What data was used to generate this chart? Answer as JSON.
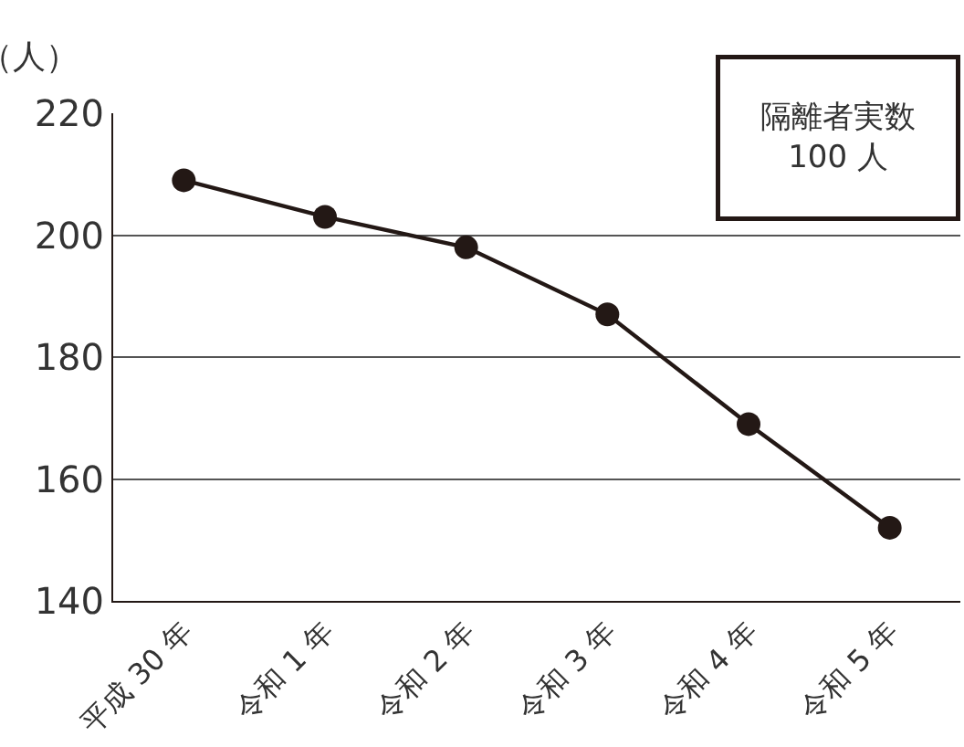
{
  "chart_data": {
    "type": "line",
    "ylabel": "（人）",
    "categories": [
      "平成 30 年",
      "令和 1 年",
      "令和 2 年",
      "令和 3 年",
      "令和 4 年",
      "令和 5 年"
    ],
    "series": [
      {
        "color": "#231815",
        "values": [
          209,
          203,
          198,
          187,
          169,
          152
        ]
      }
    ],
    "ylim": [
      140,
      220
    ],
    "yticks": [
      140,
      160,
      180,
      200,
      220
    ],
    "grid": "y",
    "marker": "circle",
    "line_style": "solid",
    "legend": false,
    "annotations": [
      "隔離者実数\n100 人"
    ]
  }
}
